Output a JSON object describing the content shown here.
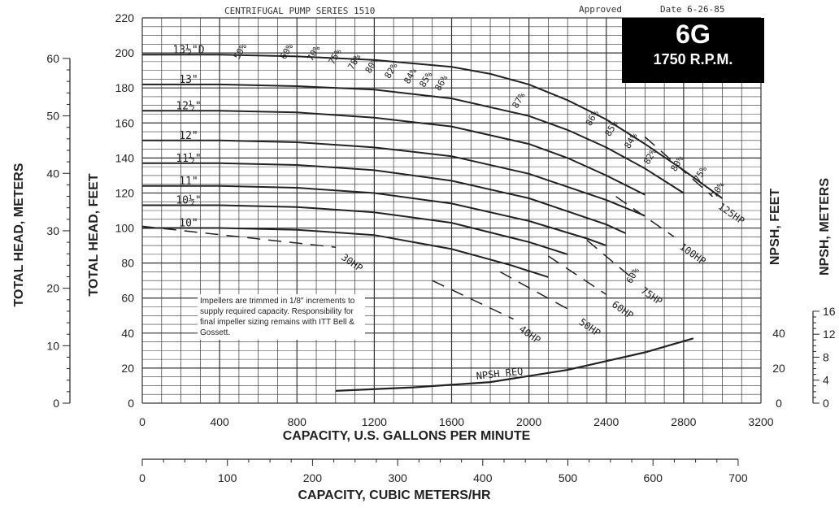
{
  "header": {
    "title": "CENTRIFUGAL PUMP SERIES 1510",
    "approved": "Approved",
    "date": "Date 6-26-85"
  },
  "badge": {
    "model": "6G",
    "speed": "1750 R.P.M."
  },
  "note": "Impellers are trimmed in 1/8\" increments to supply required capacity. Responsibility for final impeller sizing remains with ITT Bell & Gossett.",
  "colors": {
    "ink": "#222222",
    "grid": "#333333",
    "badge_bg": "#000000",
    "badge_text": "#ffffff"
  },
  "chart_data": {
    "type": "line",
    "title": "CENTRIFUGAL PUMP SERIES 1510",
    "xlabel": "CAPACITY, U.S. GALLONS PER MINUTE",
    "ylabel": "TOTAL HEAD, FEET",
    "xlim": [
      0,
      3200
    ],
    "ylim": [
      0,
      220
    ],
    "grid": true,
    "x_ticks": [
      0,
      400,
      800,
      1200,
      1600,
      2000,
      2400,
      2800,
      3200
    ],
    "y_ticks": [
      0,
      20,
      40,
      60,
      80,
      100,
      120,
      140,
      160,
      180,
      200,
      220
    ],
    "secondary_axes": {
      "head_meters": {
        "label": "TOTAL HEAD, METERS",
        "ticks": [
          0,
          10,
          20,
          30,
          40,
          50,
          60
        ]
      },
      "capacity_m3h": {
        "label": "CAPACITY, CUBIC METERS/HR",
        "ticks": [
          0,
          100,
          200,
          300,
          400,
          500,
          600,
          700
        ]
      },
      "npsh_feet": {
        "label": "NPSH, FEET",
        "ticks": [
          0,
          20,
          40
        ]
      },
      "npsh_meters": {
        "label": "NPSH, METERS",
        "ticks": [
          0,
          4,
          8,
          12,
          16
        ]
      }
    },
    "impeller_curves": [
      {
        "label": "13½\"D",
        "x": [
          0,
          400,
          800,
          1200,
          1600,
          1800,
          2000,
          2200,
          2400,
          2600,
          2800,
          3000
        ],
        "y": [
          199,
          199,
          198,
          196,
          192,
          188,
          182,
          173,
          162,
          148,
          133,
          117
        ]
      },
      {
        "label": "13\"",
        "x": [
          0,
          400,
          800,
          1200,
          1600,
          2000,
          2200,
          2400,
          2600,
          2800
        ],
        "y": [
          182,
          182,
          181,
          179,
          174,
          164,
          156,
          146,
          134,
          120
        ]
      },
      {
        "label": "12½\"",
        "x": [
          0,
          400,
          800,
          1200,
          1600,
          2000,
          2200,
          2400,
          2600
        ],
        "y": [
          167,
          167,
          166,
          163,
          158,
          148,
          140,
          130,
          119
        ]
      },
      {
        "label": "12\"",
        "x": [
          0,
          400,
          800,
          1200,
          1600,
          2000,
          2400,
          2600
        ],
        "y": [
          150,
          150,
          149,
          146,
          141,
          131,
          116,
          107
        ]
      },
      {
        "label": "11½\"",
        "x": [
          0,
          400,
          800,
          1200,
          1600,
          2000,
          2400,
          2500
        ],
        "y": [
          137,
          137,
          136,
          133,
          127,
          117,
          102,
          97
        ]
      },
      {
        "label": "11\"",
        "x": [
          0,
          400,
          800,
          1200,
          1600,
          2000,
          2300,
          2400
        ],
        "y": [
          124,
          124,
          123,
          120,
          114,
          104,
          94,
          90
        ]
      },
      {
        "label": "10½\"",
        "x": [
          0,
          400,
          800,
          1200,
          1600,
          2000,
          2200
        ],
        "y": [
          113,
          113,
          112,
          109,
          103,
          92,
          85
        ]
      },
      {
        "label": "10\"",
        "x": [
          0,
          400,
          800,
          1200,
          1600,
          1900,
          2100
        ],
        "y": [
          100,
          100,
          99,
          96,
          88,
          79,
          72
        ]
      }
    ],
    "efficiency_labels": [
      "50%",
      "60%",
      "70%",
      "75%",
      "78%",
      "80%",
      "82%",
      "84%",
      "85%",
      "86%",
      "87%",
      "86%",
      "85%",
      "84%",
      "82%",
      "80%",
      "75%",
      "70%",
      "60%"
    ],
    "horsepower_lines": [
      {
        "label": "30HP",
        "x": [
          0,
          1000
        ],
        "y": [
          101,
          89
        ]
      },
      {
        "label": "40HP",
        "x": [
          1500,
          1920
        ],
        "y": [
          70,
          48
        ]
      },
      {
        "label": "50HP",
        "x": [
          1850,
          2230
        ],
        "y": [
          75,
          52
        ]
      },
      {
        "label": "60HP",
        "x": [
          2100,
          2400
        ],
        "y": [
          84,
          62
        ]
      },
      {
        "label": "75HP",
        "x": [
          2300,
          2550
        ],
        "y": [
          93,
          70
        ]
      },
      {
        "label": "100HP",
        "x": [
          2450,
          2750
        ],
        "y": [
          118,
          95
        ]
      },
      {
        "label": "125HP",
        "x": [
          2600,
          2950
        ],
        "y": [
          152,
          118
        ]
      }
    ],
    "npsh_required": {
      "label": "NPSH REQ",
      "x": [
        1000,
        1400,
        1800,
        2200,
        2600,
        2850
      ],
      "y": [
        7,
        9,
        12,
        19,
        29,
        37
      ]
    }
  }
}
